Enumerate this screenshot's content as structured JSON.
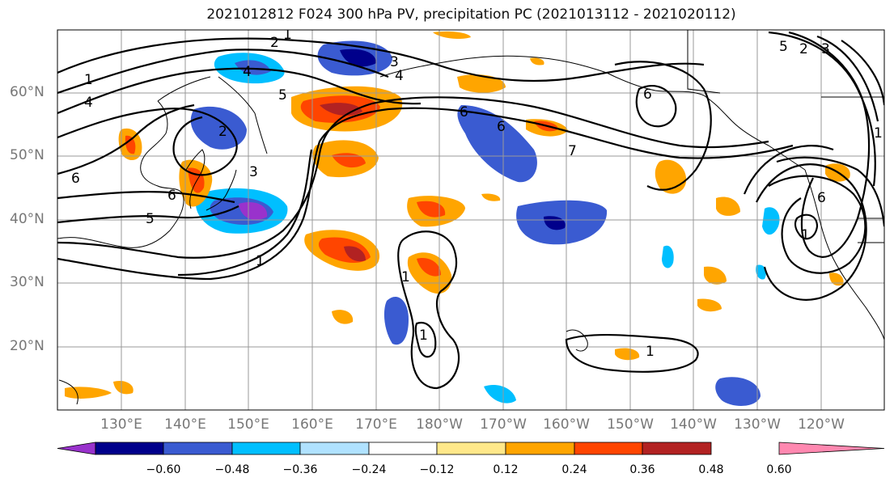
{
  "title": "2021012812 F024 300 hPa PV, precipitation PC (2021013112 - 2021020112)",
  "map": {
    "projection": "cylindrical",
    "lat_labels": [
      "60°N",
      "50°N",
      "40°N",
      "30°N",
      "20°N"
    ],
    "lon_labels": [
      "130°E",
      "140°E",
      "150°E",
      "160°E",
      "170°E",
      "180°W",
      "170°W",
      "160°W",
      "150°W",
      "140°W",
      "130°W",
      "120°W"
    ],
    "contour_labels": [
      "1",
      "2",
      "3",
      "4",
      "4",
      "1",
      "4",
      "5",
      "6",
      "2",
      "3",
      "6",
      "5",
      "1",
      "1",
      "1",
      "6",
      "6",
      "7",
      "6",
      "5",
      "6",
      "2",
      "3",
      "1",
      "1",
      "1"
    ]
  },
  "colorbar": {
    "ticks": [
      "−0.60",
      "−0.48",
      "−0.36",
      "−0.24",
      "−0.12",
      "0.12",
      "0.24",
      "0.36",
      "0.48",
      "0.60"
    ],
    "colors": [
      "#9932cc",
      "#00008b",
      "#3a5bd1",
      "#00bfff",
      "#b0e2ff",
      "#ffffff",
      "#ffe88a",
      "#ffa500",
      "#ff4500",
      "#b22222",
      "#ff88b0"
    ]
  }
}
